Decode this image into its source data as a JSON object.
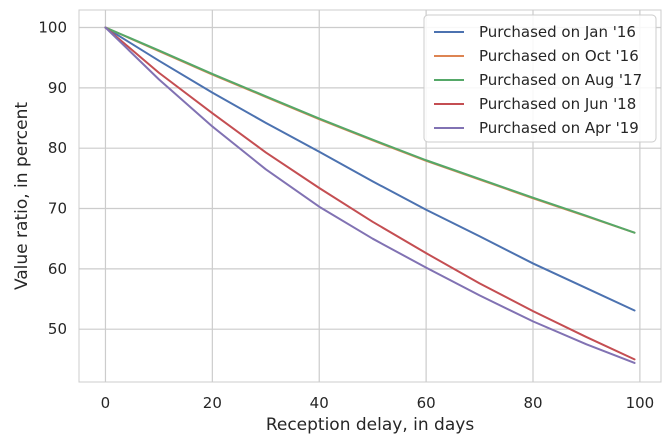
{
  "chart_data": {
    "type": "line",
    "title": "",
    "xlabel": "Reception delay, in days",
    "ylabel": "Value ratio, in percent",
    "xlim": [
      -4.95,
      103.95
    ],
    "ylim": [
      41.25,
      102.9
    ],
    "xticks": [
      0,
      20,
      40,
      60,
      80,
      100
    ],
    "yticks": [
      50,
      60,
      70,
      80,
      90,
      100
    ],
    "grid": true,
    "legend_position": "top-right",
    "x": [
      0,
      10,
      20,
      30,
      40,
      50,
      60,
      70,
      80,
      90,
      99
    ],
    "series": [
      {
        "name": "Purchased on Jan '16",
        "color": "#4c72b0",
        "values": [
          100,
          94.5,
          89.2,
          84.2,
          79.4,
          74.5,
          69.8,
          65.4,
          60.9,
          56.8,
          53.1
        ]
      },
      {
        "name": "Purchased on Oct '16",
        "color": "#dd8452",
        "values": [
          100,
          96.1,
          92.2,
          88.5,
          84.8,
          81.3,
          77.9,
          74.8,
          71.7,
          68.7,
          66.0
        ]
      },
      {
        "name": "Purchased on Aug '17",
        "color": "#55a868",
        "values": [
          100,
          96.2,
          92.3,
          88.6,
          84.9,
          81.4,
          78.0,
          74.9,
          71.8,
          68.8,
          66.0
        ]
      },
      {
        "name": "Purchased on Jun '18",
        "color": "#c44e52",
        "values": [
          100,
          92.5,
          85.8,
          79.3,
          73.4,
          67.8,
          62.6,
          57.6,
          53.0,
          48.7,
          45.0
        ]
      },
      {
        "name": "Purchased on Apr '19",
        "color": "#8172b3",
        "values": [
          100,
          91.4,
          83.6,
          76.5,
          70.3,
          65.0,
          60.2,
          55.6,
          51.3,
          47.5,
          44.4
        ]
      }
    ]
  },
  "colors": {
    "grid": "#cccccc",
    "text": "#262626",
    "background": "#ffffff",
    "legend_border": "#cccccc"
  }
}
